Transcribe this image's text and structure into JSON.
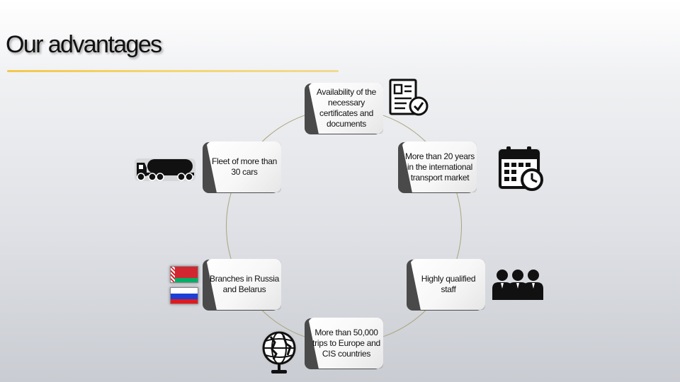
{
  "slide": {
    "title": "Our advantages",
    "colors": {
      "accent_underline": "#f3c84b",
      "ring": "#a8a57a",
      "card_shadow": "#4a4a4a"
    },
    "advantages": [
      {
        "label": "Availability of the necessary certificates and documents",
        "icon": "document-check-icon"
      },
      {
        "label": "More than 20 years in the international transport market",
        "icon": "calendar-clock-icon"
      },
      {
        "label": "Highly qualified staff",
        "icon": "team-icon"
      },
      {
        "label": "More than 50,000 trips to Europe and CIS countries",
        "icon": "globe-icon"
      },
      {
        "label": "Branches in Russia and Belarus",
        "icon": "flags-icon"
      },
      {
        "label": "Fleet of more than 30 cars",
        "icon": "tanker-truck-icon"
      }
    ]
  }
}
